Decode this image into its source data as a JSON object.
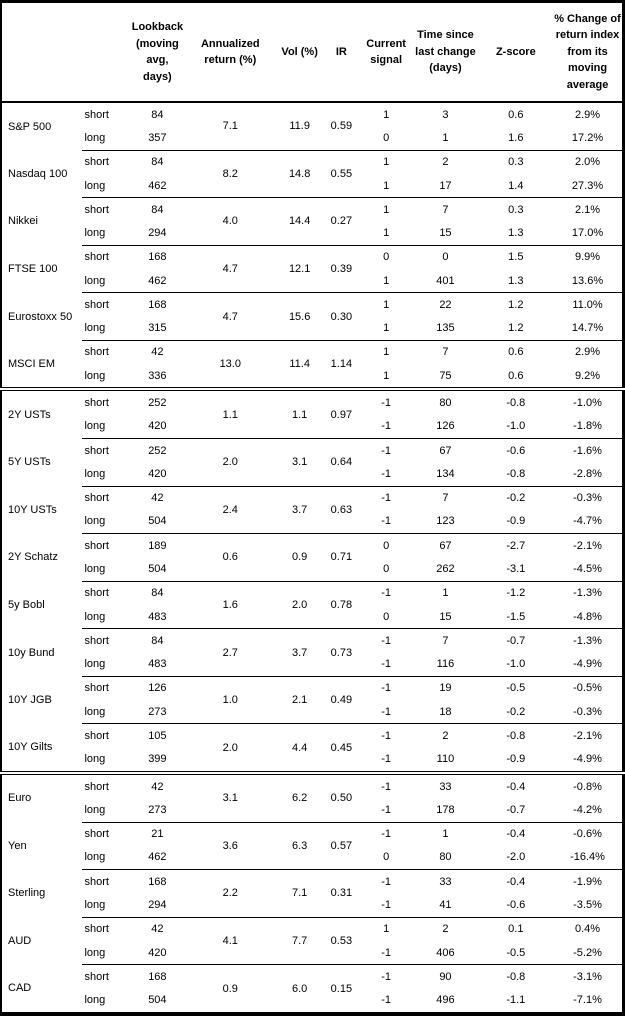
{
  "chart_data": {
    "type": "table",
    "columns": [
      "",
      "",
      "Lookback (moving avg, days)",
      "Annualized return (%)",
      "Vol (%)",
      "IR",
      "Current signal",
      "Time since last change (days)",
      "Z-score",
      "% Change of return index from its moving average"
    ],
    "groups": [
      {
        "asset": "S&P 500",
        "section": "equities",
        "annualized_return": "7.1",
        "vol": "11.9",
        "ir": "0.59",
        "rows": [
          {
            "horizon": "short",
            "lookback": "84",
            "signal": "1",
            "days_since_change": "3",
            "z_score": "0.6",
            "pct_change": "2.9%"
          },
          {
            "horizon": "long",
            "lookback": "357",
            "signal": "0",
            "days_since_change": "1",
            "z_score": "1.6",
            "pct_change": "17.2%"
          }
        ]
      },
      {
        "asset": "Nasdaq 100",
        "section": "equities",
        "annualized_return": "8.2",
        "vol": "14.8",
        "ir": "0.55",
        "rows": [
          {
            "horizon": "short",
            "lookback": "84",
            "signal": "1",
            "days_since_change": "2",
            "z_score": "0.3",
            "pct_change": "2.0%"
          },
          {
            "horizon": "long",
            "lookback": "462",
            "signal": "1",
            "days_since_change": "17",
            "z_score": "1.4",
            "pct_change": "27.3%"
          }
        ]
      },
      {
        "asset": "Nikkei",
        "section": "equities",
        "annualized_return": "4.0",
        "vol": "14.4",
        "ir": "0.27",
        "rows": [
          {
            "horizon": "short",
            "lookback": "84",
            "signal": "1",
            "days_since_change": "7",
            "z_score": "0.3",
            "pct_change": "2.1%"
          },
          {
            "horizon": "long",
            "lookback": "294",
            "signal": "1",
            "days_since_change": "15",
            "z_score": "1.3",
            "pct_change": "17.0%"
          }
        ]
      },
      {
        "asset": "FTSE 100",
        "section": "equities",
        "annualized_return": "4.7",
        "vol": "12.1",
        "ir": "0.39",
        "rows": [
          {
            "horizon": "short",
            "lookback": "168",
            "signal": "0",
            "days_since_change": "0",
            "z_score": "1.5",
            "pct_change": "9.9%"
          },
          {
            "horizon": "long",
            "lookback": "462",
            "signal": "1",
            "days_since_change": "401",
            "z_score": "1.3",
            "pct_change": "13.6%"
          }
        ]
      },
      {
        "asset": "Eurostoxx 50",
        "section": "equities",
        "annualized_return": "4.7",
        "vol": "15.6",
        "ir": "0.30",
        "rows": [
          {
            "horizon": "short",
            "lookback": "168",
            "signal": "1",
            "days_since_change": "22",
            "z_score": "1.2",
            "pct_change": "11.0%"
          },
          {
            "horizon": "long",
            "lookback": "315",
            "signal": "1",
            "days_since_change": "135",
            "z_score": "1.2",
            "pct_change": "14.7%"
          }
        ]
      },
      {
        "asset": "MSCI EM",
        "section": "equities",
        "annualized_return": "13.0",
        "vol": "11.4",
        "ir": "1.14",
        "rows": [
          {
            "horizon": "short",
            "lookback": "42",
            "signal": "1",
            "days_since_change": "7",
            "z_score": "0.6",
            "pct_change": "2.9%"
          },
          {
            "horizon": "long",
            "lookback": "336",
            "signal": "1",
            "days_since_change": "75",
            "z_score": "0.6",
            "pct_change": "9.2%"
          }
        ]
      },
      {
        "asset": "2Y USTs",
        "section": "bonds",
        "annualized_return": "1.1",
        "vol": "1.1",
        "ir": "0.97",
        "rows": [
          {
            "horizon": "short",
            "lookback": "252",
            "signal": "-1",
            "days_since_change": "80",
            "z_score": "-0.8",
            "pct_change": "-1.0%"
          },
          {
            "horizon": "long",
            "lookback": "420",
            "signal": "-1",
            "days_since_change": "126",
            "z_score": "-1.0",
            "pct_change": "-1.8%"
          }
        ]
      },
      {
        "asset": "5Y USTs",
        "section": "bonds",
        "annualized_return": "2.0",
        "vol": "3.1",
        "ir": "0.64",
        "rows": [
          {
            "horizon": "short",
            "lookback": "252",
            "signal": "-1",
            "days_since_change": "67",
            "z_score": "-0.6",
            "pct_change": "-1.6%"
          },
          {
            "horizon": "long",
            "lookback": "420",
            "signal": "-1",
            "days_since_change": "134",
            "z_score": "-0.8",
            "pct_change": "-2.8%"
          }
        ]
      },
      {
        "asset": "10Y USTs",
        "section": "bonds",
        "annualized_return": "2.4",
        "vol": "3.7",
        "ir": "0.63",
        "rows": [
          {
            "horizon": "short",
            "lookback": "42",
            "signal": "-1",
            "days_since_change": "7",
            "z_score": "-0.2",
            "pct_change": "-0.3%"
          },
          {
            "horizon": "long",
            "lookback": "504",
            "signal": "-1",
            "days_since_change": "123",
            "z_score": "-0.9",
            "pct_change": "-4.7%"
          }
        ]
      },
      {
        "asset": "2Y Schatz",
        "section": "bonds",
        "annualized_return": "0.6",
        "vol": "0.9",
        "ir": "0.71",
        "rows": [
          {
            "horizon": "short",
            "lookback": "189",
            "signal": "0",
            "days_since_change": "67",
            "z_score": "-2.7",
            "pct_change": "-2.1%"
          },
          {
            "horizon": "long",
            "lookback": "504",
            "signal": "0",
            "days_since_change": "262",
            "z_score": "-3.1",
            "pct_change": "-4.5%"
          }
        ]
      },
      {
        "asset": "5y Bobl",
        "section": "bonds",
        "annualized_return": "1.6",
        "vol": "2.0",
        "ir": "0.78",
        "rows": [
          {
            "horizon": "short",
            "lookback": "84",
            "signal": "-1",
            "days_since_change": "1",
            "z_score": "-1.2",
            "pct_change": "-1.3%"
          },
          {
            "horizon": "long",
            "lookback": "483",
            "signal": "0",
            "days_since_change": "15",
            "z_score": "-1.5",
            "pct_change": "-4.8%"
          }
        ]
      },
      {
        "asset": "10y Bund",
        "section": "bonds",
        "annualized_return": "2.7",
        "vol": "3.7",
        "ir": "0.73",
        "rows": [
          {
            "horizon": "short",
            "lookback": "84",
            "signal": "-1",
            "days_since_change": "7",
            "z_score": "-0.7",
            "pct_change": "-1.3%"
          },
          {
            "horizon": "long",
            "lookback": "483",
            "signal": "-1",
            "days_since_change": "116",
            "z_score": "-1.0",
            "pct_change": "-4.9%"
          }
        ]
      },
      {
        "asset": "10Y JGB",
        "section": "bonds",
        "annualized_return": "1.0",
        "vol": "2.1",
        "ir": "0.49",
        "rows": [
          {
            "horizon": "short",
            "lookback": "126",
            "signal": "-1",
            "days_since_change": "19",
            "z_score": "-0.5",
            "pct_change": "-0.5%"
          },
          {
            "horizon": "long",
            "lookback": "273",
            "signal": "-1",
            "days_since_change": "18",
            "z_score": "-0.2",
            "pct_change": "-0.3%"
          }
        ]
      },
      {
        "asset": "10Y Gilts",
        "section": "bonds",
        "annualized_return": "2.0",
        "vol": "4.4",
        "ir": "0.45",
        "rows": [
          {
            "horizon": "short",
            "lookback": "105",
            "signal": "-1",
            "days_since_change": "2",
            "z_score": "-0.8",
            "pct_change": "-2.1%"
          },
          {
            "horizon": "long",
            "lookback": "399",
            "signal": "-1",
            "days_since_change": "110",
            "z_score": "-0.9",
            "pct_change": "-4.9%"
          }
        ]
      },
      {
        "asset": "Euro",
        "section": "fx",
        "annualized_return": "3.1",
        "vol": "6.2",
        "ir": "0.50",
        "rows": [
          {
            "horizon": "short",
            "lookback": "42",
            "signal": "-1",
            "days_since_change": "33",
            "z_score": "-0.4",
            "pct_change": "-0.8%"
          },
          {
            "horizon": "long",
            "lookback": "273",
            "signal": "-1",
            "days_since_change": "178",
            "z_score": "-0.7",
            "pct_change": "-4.2%"
          }
        ]
      },
      {
        "asset": "Yen",
        "section": "fx",
        "annualized_return": "3.6",
        "vol": "6.3",
        "ir": "0.57",
        "rows": [
          {
            "horizon": "short",
            "lookback": "21",
            "signal": "-1",
            "days_since_change": "1",
            "z_score": "-0.4",
            "pct_change": "-0.6%"
          },
          {
            "horizon": "long",
            "lookback": "462",
            "signal": "0",
            "days_since_change": "80",
            "z_score": "-2.0",
            "pct_change": "-16.4%"
          }
        ]
      },
      {
        "asset": "Sterling",
        "section": "fx",
        "annualized_return": "2.2",
        "vol": "7.1",
        "ir": "0.31",
        "rows": [
          {
            "horizon": "short",
            "lookback": "168",
            "signal": "-1",
            "days_since_change": "33",
            "z_score": "-0.4",
            "pct_change": "-1.9%"
          },
          {
            "horizon": "long",
            "lookback": "294",
            "signal": "-1",
            "days_since_change": "41",
            "z_score": "-0.6",
            "pct_change": "-3.5%"
          }
        ]
      },
      {
        "asset": "AUD",
        "section": "fx",
        "annualized_return": "4.1",
        "vol": "7.7",
        "ir": "0.53",
        "rows": [
          {
            "horizon": "short",
            "lookback": "42",
            "signal": "1",
            "days_since_change": "2",
            "z_score": "0.1",
            "pct_change": "0.4%"
          },
          {
            "horizon": "long",
            "lookback": "420",
            "signal": "-1",
            "days_since_change": "406",
            "z_score": "-0.5",
            "pct_change": "-5.2%"
          }
        ]
      },
      {
        "asset": "CAD",
        "section": "fx",
        "annualized_return": "0.9",
        "vol": "6.0",
        "ir": "0.15",
        "rows": [
          {
            "horizon": "short",
            "lookback": "168",
            "signal": "-1",
            "days_since_change": "90",
            "z_score": "-0.8",
            "pct_change": "-3.1%"
          },
          {
            "horizon": "long",
            "lookback": "504",
            "signal": "-1",
            "days_since_change": "496",
            "z_score": "-1.1",
            "pct_change": "-7.1%"
          }
        ]
      }
    ]
  }
}
